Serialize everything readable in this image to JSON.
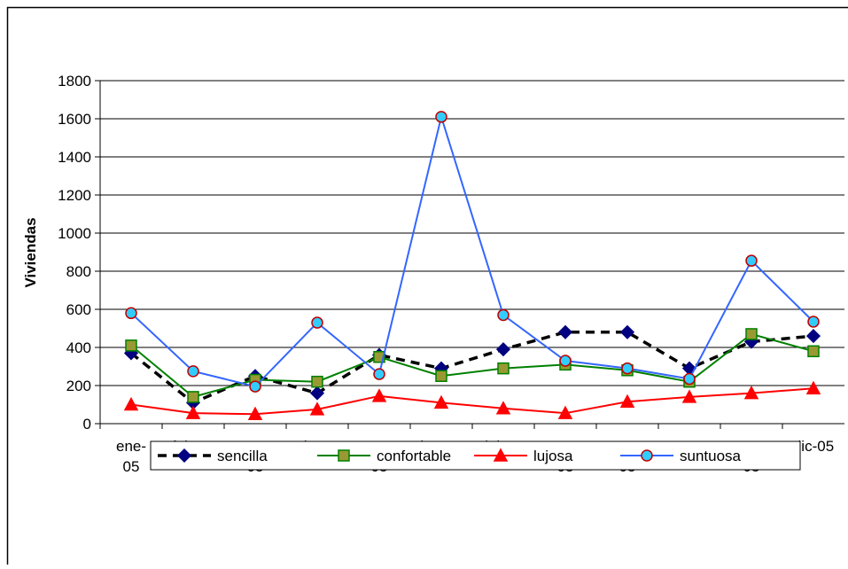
{
  "chart_data": {
    "type": "line",
    "y_label": "Viviendas",
    "categories": [
      "ene-05",
      "feb-05",
      "mar-05",
      "abr-05",
      "may-05",
      "jun-05",
      "jul-05",
      "ago-05",
      "sep-05",
      "oct-05",
      "nov-05",
      "dic-05"
    ],
    "ylim": [
      0,
      1800
    ],
    "yticks": [
      0,
      200,
      400,
      600,
      800,
      1000,
      1200,
      1400,
      1600,
      1800
    ],
    "grid": true,
    "legend": "bottom",
    "series": [
      {
        "name": "sencilla",
        "color": "#000000",
        "marker": "diamond",
        "marker_color": "#000080",
        "dashed": true,
        "values": [
          370,
          110,
          250,
          160,
          360,
          290,
          390,
          480,
          480,
          290,
          430,
          460
        ]
      },
      {
        "name": "confortable",
        "color": "#008000",
        "marker": "square",
        "marker_color": "#999933",
        "values": [
          410,
          140,
          230,
          220,
          350,
          250,
          290,
          310,
          280,
          220,
          470,
          380
        ]
      },
      {
        "name": "lujosa",
        "color": "#ff0000",
        "marker": "triangle",
        "marker_color": "#ff0000",
        "values": [
          100,
          55,
          50,
          75,
          145,
          110,
          80,
          55,
          115,
          140,
          160,
          185
        ]
      },
      {
        "name": "suntuosa",
        "color": "#3366ff",
        "marker": "circle",
        "marker_color": "#33ccff",
        "values": [
          580,
          275,
          195,
          530,
          260,
          1610,
          570,
          330,
          290,
          235,
          855,
          535
        ]
      }
    ]
  }
}
